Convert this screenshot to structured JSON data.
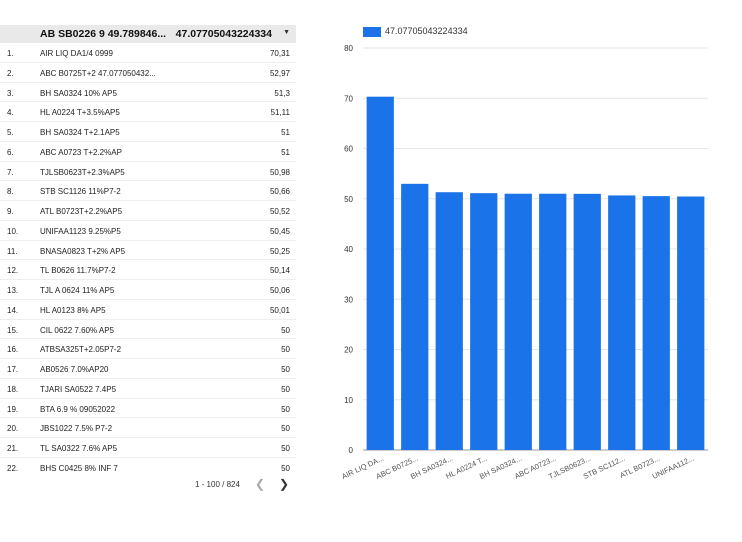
{
  "table": {
    "header": {
      "name": "AB SB0226 9 49.789846...",
      "value": "47.07705043224334",
      "sort_icon": "sort-desc-icon"
    },
    "rows": [
      {
        "idx": "1.",
        "name": "AIR LIQ DA1/4 0999",
        "value": "70,31"
      },
      {
        "idx": "2.",
        "name": "ABC B0725T+2 47.077050432...",
        "value": "52,97"
      },
      {
        "idx": "3.",
        "name": "BH SA0324 10% AP5",
        "value": "51,3"
      },
      {
        "idx": "4.",
        "name": "HL A0224 T+3.5%AP5",
        "value": "51,11"
      },
      {
        "idx": "5.",
        "name": "BH SA0324 T+2.1AP5",
        "value": "51"
      },
      {
        "idx": "6.",
        "name": "ABC A0723 T+2.2%AP",
        "value": "51"
      },
      {
        "idx": "7.",
        "name": "TJLSB0623T+2.3%AP5",
        "value": "50,98"
      },
      {
        "idx": "8.",
        "name": "STB SC1126 11%P7-2",
        "value": "50,66"
      },
      {
        "idx": "9.",
        "name": "ATL B0723T+2.2%AP5",
        "value": "50,52"
      },
      {
        "idx": "10.",
        "name": "UNIFAA1123 9.25%P5",
        "value": "50,45"
      },
      {
        "idx": "11.",
        "name": "BNASA0823 T+2% AP5",
        "value": "50,25"
      },
      {
        "idx": "12.",
        "name": "TL B0626 11.7%P7-2",
        "value": "50,14"
      },
      {
        "idx": "13.",
        "name": "TJL A 0624 11% AP5",
        "value": "50,06"
      },
      {
        "idx": "14.",
        "name": "HL A0123 8% AP5",
        "value": "50,01"
      },
      {
        "idx": "15.",
        "name": "CIL 0622 7.60% AP5",
        "value": "50"
      },
      {
        "idx": "16.",
        "name": "ATBSA325T+2.05P7-2",
        "value": "50"
      },
      {
        "idx": "17.",
        "name": "AB0526 7.0%AP20",
        "value": "50"
      },
      {
        "idx": "18.",
        "name": "TJARI SA0522 7.4P5",
        "value": "50"
      },
      {
        "idx": "19.",
        "name": "BTA 6.9 % 09052022",
        "value": "50"
      },
      {
        "idx": "20.",
        "name": "JBS1022 7.5% P7-2",
        "value": "50"
      },
      {
        "idx": "21.",
        "name": "TL SA0322 7.6% AP5",
        "value": "50"
      },
      {
        "idx": "22.",
        "name": "BHS C0425 8% INF 7",
        "value": "50"
      }
    ],
    "pager": {
      "range": "1 - 100 / 824",
      "prev_icon": "chevron-left-icon",
      "next_icon": "chevron-right-icon"
    }
  },
  "chart_data": {
    "type": "bar",
    "legend": {
      "label": "47.07705043224334",
      "position": "top-left",
      "color": "#1a73e8"
    },
    "categories": [
      "AIR LIQ DA...",
      "ABC B0725...",
      "BH SA0324...",
      "HL A0224 T...",
      "BH SA0324...",
      "ABC A0723...",
      "TJLSB0623...",
      "STB SC112...",
      "ATL B0723...",
      "UNIFAA112..."
    ],
    "series": [
      {
        "name": "47.07705043224334",
        "values": [
          70.31,
          52.97,
          51.3,
          51.11,
          51,
          51,
          50.98,
          50.66,
          50.52,
          50.45
        ]
      }
    ],
    "ylim": [
      0,
      80
    ],
    "yticks": [
      0,
      10,
      20,
      30,
      40,
      50,
      60,
      70,
      80
    ],
    "grid": true,
    "bar_color": "#1a73e8"
  }
}
